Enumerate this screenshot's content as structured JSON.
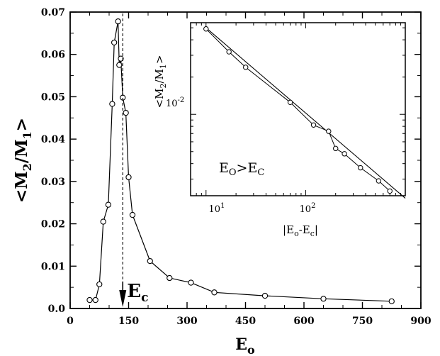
{
  "chart_data": [
    {
      "type": "line",
      "title": "",
      "xlabel": "E",
      "xlabel_sub": "o",
      "ylabel_parts": [
        "<M",
        "2",
        "/M",
        "1",
        ">"
      ],
      "xlim": [
        0,
        900
      ],
      "ylim": [
        0.0,
        0.07
      ],
      "xticks": [
        0,
        150,
        300,
        450,
        600,
        750,
        900
      ],
      "yticks": [
        0.0,
        0.01,
        0.02,
        0.03,
        0.04,
        0.05,
        0.06,
        0.07
      ],
      "xtick_labels": [
        "0",
        "150",
        "300",
        "450",
        "600",
        "750",
        "900"
      ],
      "ytick_labels": [
        "0.0",
        "0.01",
        "0.02",
        "0.03",
        "0.04",
        "0.05",
        "0.06",
        "0.07"
      ],
      "series": [
        {
          "marker": "open-circle",
          "x": [
            50,
            65,
            75,
            85,
            98,
            108,
            113,
            123,
            126,
            130,
            135,
            143,
            150,
            160,
            205,
            255,
            310,
            370,
            500,
            650,
            825
          ],
          "y": [
            0.002,
            0.002,
            0.0057,
            0.0205,
            0.0245,
            0.0483,
            0.0628,
            0.0678,
            0.0575,
            0.059,
            0.0498,
            0.0462,
            0.031,
            0.0221,
            0.0112,
            0.0072,
            0.0061,
            0.0038,
            0.003,
            0.0023,
            0.0017
          ]
        }
      ],
      "annotation": {
        "label": "E",
        "label_sub": "c",
        "x": 135,
        "style": "dashed vertical line with down arrow"
      }
    },
    {
      "type": "line",
      "inset": true,
      "xscale": "log",
      "yscale": "log",
      "xlabel_parts": [
        "|E",
        "o",
        "-E",
        "c",
        "|"
      ],
      "ylabel_parts": [
        "<M",
        "2",
        "/M",
        "1",
        ">"
      ],
      "xlim": [
        7,
        1000
      ],
      "ylim": [
        0.0022,
        0.055
      ],
      "xtick_labels": [
        {
          "base": "10",
          "exp": "1"
        },
        {
          "base": "10",
          "exp": "2"
        }
      ],
      "ytick_labels": [
        {
          "base": "10",
          "exp": "-2"
        }
      ],
      "condition_parts": [
        "E",
        "O",
        ">E",
        "C"
      ],
      "series": [
        {
          "marker": "open-circle",
          "x": [
            10,
            17,
            25,
            70,
            120,
            170,
            200,
            245,
            355,
            540,
            700
          ],
          "y": [
            0.049,
            0.032,
            0.024,
            0.0125,
            0.0082,
            0.0073,
            0.0053,
            0.0048,
            0.0037,
            0.0029,
            0.0024
          ]
        },
        {
          "name": "",
          "style": "fit-line",
          "x": [
            10,
            1000
          ],
          "y": [
            0.05,
            0.0021
          ]
        }
      ]
    }
  ]
}
